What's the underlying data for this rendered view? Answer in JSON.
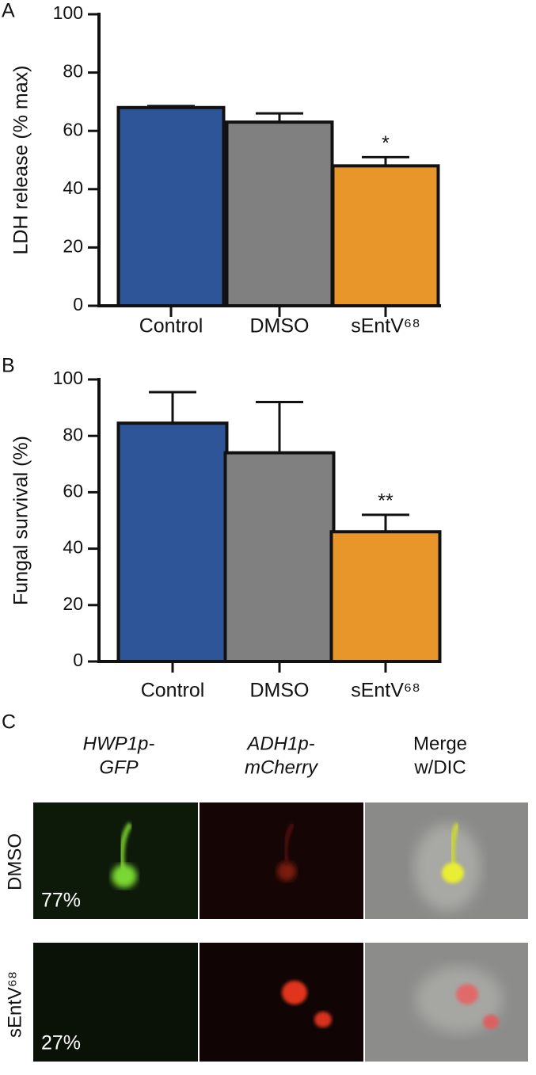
{
  "chart_data": [
    {
      "type": "bar",
      "panel": "A",
      "y_label": "LDH release (% max)",
      "categories": [
        "Control",
        "DMSO",
        "sEntV⁶⁸"
      ],
      "values": [
        68,
        63,
        48
      ],
      "errors": [
        0.5,
        3,
        3
      ],
      "annotations": [
        null,
        null,
        "*"
      ],
      "colors": [
        "#2d5597",
        "#808080",
        "#e8952a"
      ],
      "ylim": [
        0,
        100
      ],
      "yticks": [
        0,
        20,
        40,
        60,
        80,
        100
      ]
    },
    {
      "type": "bar",
      "panel": "B",
      "y_label": "Fungal survival (%)",
      "categories": [
        "Control",
        "DMSO",
        "sEntV⁶⁸"
      ],
      "values": [
        84.5,
        74,
        46
      ],
      "errors": [
        11,
        18,
        6
      ],
      "annotations": [
        null,
        null,
        "**"
      ],
      "colors": [
        "#2d5597",
        "#808080",
        "#e8952a"
      ],
      "ylim": [
        0,
        100
      ],
      "yticks": [
        0,
        20,
        40,
        60,
        80,
        100
      ]
    }
  ],
  "panel_c": {
    "panel": "C",
    "columns": [
      [
        "HWP1p-",
        "GFP"
      ],
      [
        "ADH1p-",
        "mCherry"
      ],
      [
        "Merge",
        "w/DIC"
      ]
    ],
    "rows": [
      {
        "label": "DMSO",
        "percent": "77%"
      },
      {
        "label": "sEntV⁶⁸",
        "percent": "27%"
      }
    ]
  }
}
